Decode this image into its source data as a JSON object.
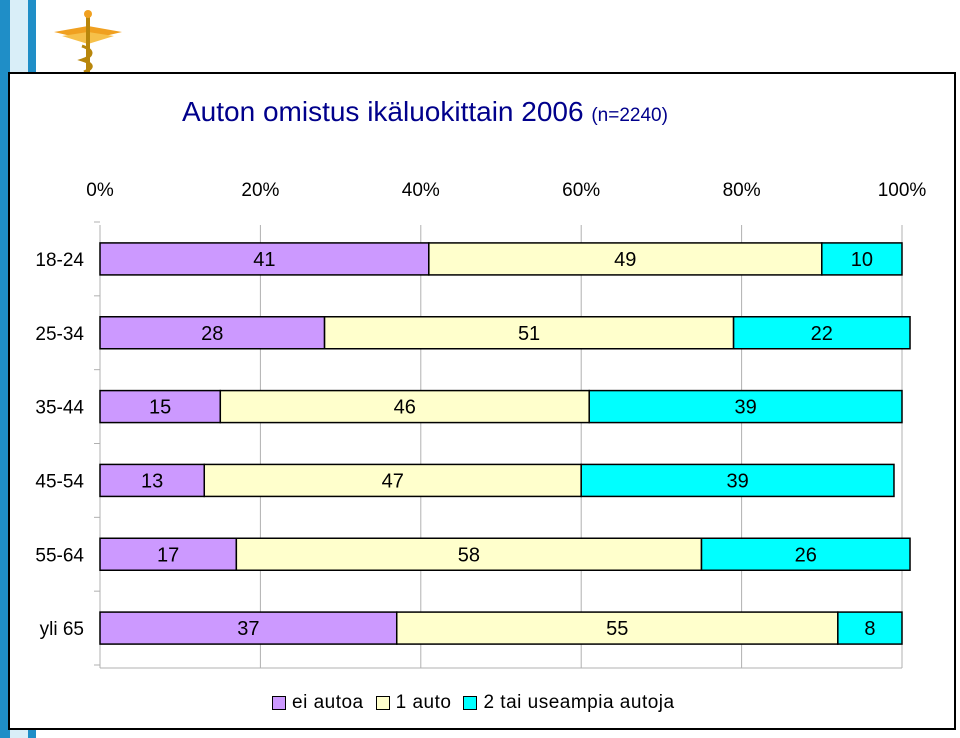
{
  "chart_data": {
    "type": "bar",
    "orientation": "horizontal",
    "stacked": true,
    "title": "Auton omistus ikäluokittain 2006",
    "subtitle": "(n=2240)",
    "x_ticks": [
      "0%",
      "20%",
      "40%",
      "60%",
      "80%",
      "100%"
    ],
    "xlim": [
      0,
      100
    ],
    "categories": [
      "18-24",
      "25-34",
      "35-44",
      "45-54",
      "55-64",
      "yli 65"
    ],
    "series": [
      {
        "name": "ei autoa",
        "color": "#cc99ff",
        "values": [
          41,
          28,
          15,
          13,
          17,
          37
        ]
      },
      {
        "name": "1 auto",
        "color": "#ffffcc",
        "values": [
          49,
          51,
          46,
          47,
          58,
          55
        ]
      },
      {
        "name": "2 tai useampia autoja",
        "color": "#00ffff",
        "values": [
          10,
          22,
          39,
          39,
          26,
          8
        ]
      }
    ],
    "grid": true,
    "legend_position": "bottom"
  }
}
